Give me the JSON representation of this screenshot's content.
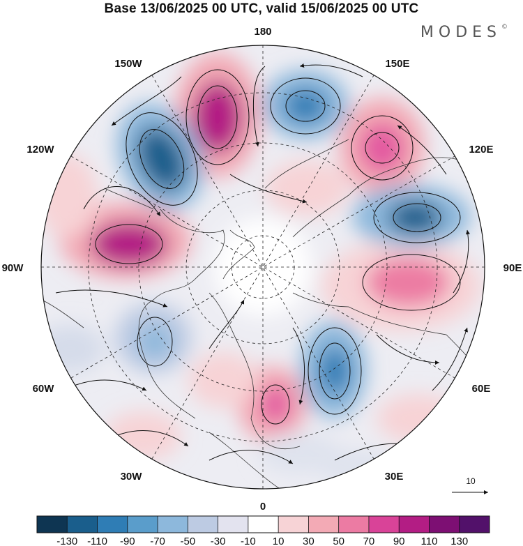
{
  "title": "Base 13/06/2025 00 UTC, valid 15/06/2025 00 UTC",
  "brand": "MODES",
  "brand_mark": "©",
  "longitude_labels": {
    "lon_180": "180",
    "lon_150e": "150E",
    "lon_120e": "120E",
    "lon_90e": "90E",
    "lon_60e": "60E",
    "lon_30e": "30E",
    "lon_0": "0",
    "lon_30w": "30W",
    "lon_60w": "60W",
    "lon_90w": "90W",
    "lon_120w": "120W",
    "lon_150w": "150W"
  },
  "reference_vector_label": "10",
  "colorbar": {
    "colors": [
      "#0e3552",
      "#1a5e8c",
      "#2f7db5",
      "#5a9dcb",
      "#8db8dc",
      "#bdcbe3",
      "#e3e3ef",
      "#ffffff",
      "#f7d3d6",
      "#f3aab5",
      "#ec7ba3",
      "#d94398",
      "#b31d84",
      "#7d0f73",
      "#52116a"
    ],
    "ticks": [
      "-130",
      "-110",
      "-90",
      "-70",
      "-50",
      "-30",
      "-10",
      "10",
      "30",
      "50",
      "70",
      "90",
      "110",
      "130"
    ]
  }
}
